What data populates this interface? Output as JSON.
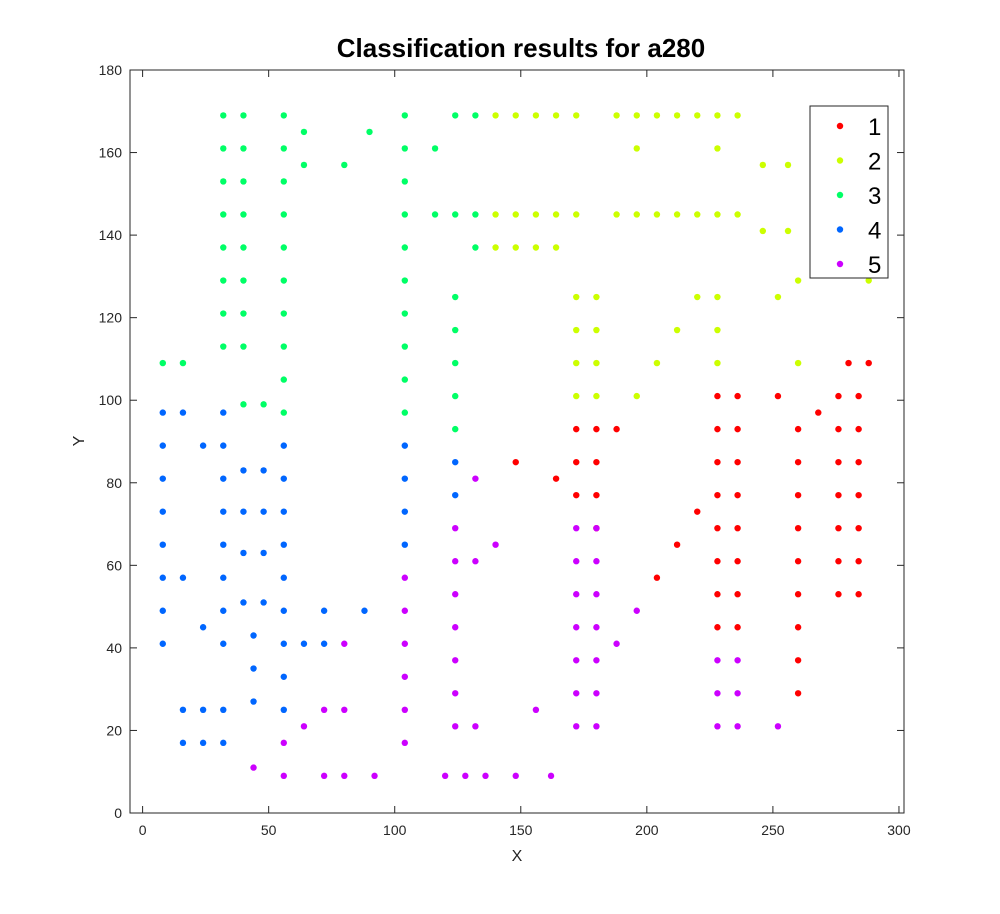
{
  "chart_data": {
    "type": "scatter",
    "title": "Classification results for a280",
    "xlabel": "X",
    "ylabel": "Y",
    "xlim": [
      -5,
      302
    ],
    "ylim": [
      0,
      180
    ],
    "xticks": [
      0,
      50,
      100,
      150,
      200,
      250,
      300
    ],
    "yticks": [
      0,
      20,
      40,
      60,
      80,
      100,
      120,
      140,
      160,
      180
    ],
    "grid": false,
    "legend_position": "top-right",
    "series": [
      {
        "name": "1",
        "color": "#ff0000",
        "points": [
          [
            148,
            85
          ],
          [
            164,
            81
          ],
          [
            172,
            93
          ],
          [
            172,
            85
          ],
          [
            172,
            77
          ],
          [
            180,
            93
          ],
          [
            180,
            85
          ],
          [
            180,
            77
          ],
          [
            180,
            69
          ],
          [
            188,
            93
          ],
          [
            204,
            57
          ],
          [
            212,
            65
          ],
          [
            220,
            73
          ],
          [
            228,
            101
          ],
          [
            228,
            93
          ],
          [
            228,
            85
          ],
          [
            228,
            77
          ],
          [
            228,
            69
          ],
          [
            228,
            61
          ],
          [
            228,
            53
          ],
          [
            228,
            45
          ],
          [
            236,
            101
          ],
          [
            236,
            93
          ],
          [
            236,
            85
          ],
          [
            236,
            77
          ],
          [
            236,
            69
          ],
          [
            236,
            61
          ],
          [
            236,
            53
          ],
          [
            236,
            45
          ],
          [
            252,
            101
          ],
          [
            268,
            97
          ],
          [
            260,
            93
          ],
          [
            260,
            85
          ],
          [
            260,
            77
          ],
          [
            260,
            69
          ],
          [
            260,
            61
          ],
          [
            260,
            53
          ],
          [
            260,
            45
          ],
          [
            260,
            37
          ],
          [
            260,
            29
          ],
          [
            276,
            101
          ],
          [
            276,
            93
          ],
          [
            276,
            85
          ],
          [
            276,
            77
          ],
          [
            276,
            69
          ],
          [
            276,
            61
          ],
          [
            276,
            53
          ],
          [
            284,
            101
          ],
          [
            284,
            93
          ],
          [
            284,
            85
          ],
          [
            284,
            77
          ],
          [
            284,
            69
          ],
          [
            284,
            61
          ],
          [
            284,
            53
          ],
          [
            280,
            109
          ],
          [
            288,
            109
          ]
        ]
      },
      {
        "name": "2",
        "color": "#ccff00",
        "points": [
          [
            140,
            169
          ],
          [
            148,
            169
          ],
          [
            156,
            169
          ],
          [
            164,
            169
          ],
          [
            172,
            169
          ],
          [
            188,
            169
          ],
          [
            196,
            169
          ],
          [
            204,
            169
          ],
          [
            212,
            169
          ],
          [
            220,
            169
          ],
          [
            228,
            169
          ],
          [
            236,
            169
          ],
          [
            196,
            161
          ],
          [
            228,
            161
          ],
          [
            246,
            157
          ],
          [
            256,
            157
          ],
          [
            140,
            145
          ],
          [
            148,
            145
          ],
          [
            156,
            145
          ],
          [
            164,
            145
          ],
          [
            172,
            145
          ],
          [
            188,
            145
          ],
          [
            196,
            145
          ],
          [
            204,
            145
          ],
          [
            212,
            145
          ],
          [
            220,
            145
          ],
          [
            228,
            145
          ],
          [
            236,
            145
          ],
          [
            246,
            141
          ],
          [
            256,
            141
          ],
          [
            140,
            137
          ],
          [
            148,
            137
          ],
          [
            156,
            137
          ],
          [
            164,
            137
          ],
          [
            260,
            129
          ],
          [
            288,
            129
          ],
          [
            172,
            125
          ],
          [
            180,
            125
          ],
          [
            220,
            125
          ],
          [
            228,
            125
          ],
          [
            252,
            125
          ],
          [
            172,
            117
          ],
          [
            180,
            117
          ],
          [
            212,
            117
          ],
          [
            228,
            117
          ],
          [
            172,
            109
          ],
          [
            180,
            109
          ],
          [
            204,
            109
          ],
          [
            228,
            109
          ],
          [
            260,
            109
          ],
          [
            172,
            101
          ],
          [
            180,
            101
          ],
          [
            196,
            101
          ]
        ]
      },
      {
        "name": "3",
        "color": "#00ff66",
        "points": [
          [
            32,
            169
          ],
          [
            40,
            169
          ],
          [
            56,
            169
          ],
          [
            104,
            169
          ],
          [
            124,
            169
          ],
          [
            132,
            169
          ],
          [
            64,
            165
          ],
          [
            90,
            165
          ],
          [
            32,
            161
          ],
          [
            40,
            161
          ],
          [
            56,
            161
          ],
          [
            104,
            161
          ],
          [
            116,
            161
          ],
          [
            64,
            157
          ],
          [
            80,
            157
          ],
          [
            32,
            153
          ],
          [
            40,
            153
          ],
          [
            56,
            153
          ],
          [
            104,
            153
          ],
          [
            32,
            145
          ],
          [
            40,
            145
          ],
          [
            56,
            145
          ],
          [
            104,
            145
          ],
          [
            116,
            145
          ],
          [
            124,
            145
          ],
          [
            132,
            145
          ],
          [
            32,
            137
          ],
          [
            40,
            137
          ],
          [
            56,
            137
          ],
          [
            104,
            137
          ],
          [
            132,
            137
          ],
          [
            32,
            129
          ],
          [
            40,
            129
          ],
          [
            56,
            129
          ],
          [
            104,
            129
          ],
          [
            124,
            125
          ],
          [
            32,
            121
          ],
          [
            40,
            121
          ],
          [
            56,
            121
          ],
          [
            104,
            121
          ],
          [
            124,
            117
          ],
          [
            32,
            113
          ],
          [
            40,
            113
          ],
          [
            56,
            113
          ],
          [
            104,
            113
          ],
          [
            8,
            109
          ],
          [
            16,
            109
          ],
          [
            124,
            109
          ],
          [
            56,
            105
          ],
          [
            104,
            105
          ],
          [
            124,
            101
          ],
          [
            40,
            99
          ],
          [
            48,
            99
          ],
          [
            56,
            97
          ],
          [
            104,
            97
          ],
          [
            124,
            93
          ]
        ]
      },
      {
        "name": "4",
        "color": "#0066ff",
        "points": [
          [
            8,
            97
          ],
          [
            16,
            97
          ],
          [
            32,
            97
          ],
          [
            8,
            89
          ],
          [
            24,
            89
          ],
          [
            32,
            89
          ],
          [
            56,
            89
          ],
          [
            104,
            89
          ],
          [
            124,
            85
          ],
          [
            40,
            83
          ],
          [
            48,
            83
          ],
          [
            8,
            81
          ],
          [
            32,
            81
          ],
          [
            56,
            81
          ],
          [
            104,
            81
          ],
          [
            124,
            77
          ],
          [
            8,
            73
          ],
          [
            32,
            73
          ],
          [
            40,
            73
          ],
          [
            48,
            73
          ],
          [
            56,
            73
          ],
          [
            104,
            73
          ],
          [
            8,
            65
          ],
          [
            32,
            65
          ],
          [
            56,
            65
          ],
          [
            104,
            65
          ],
          [
            40,
            63
          ],
          [
            48,
            63
          ],
          [
            8,
            57
          ],
          [
            16,
            57
          ],
          [
            32,
            57
          ],
          [
            56,
            57
          ],
          [
            40,
            51
          ],
          [
            48,
            51
          ],
          [
            8,
            49
          ],
          [
            32,
            49
          ],
          [
            56,
            49
          ],
          [
            72,
            49
          ],
          [
            88,
            49
          ],
          [
            24,
            45
          ],
          [
            44,
            43
          ],
          [
            8,
            41
          ],
          [
            32,
            41
          ],
          [
            56,
            41
          ],
          [
            64,
            41
          ],
          [
            72,
            41
          ],
          [
            44,
            35
          ],
          [
            56,
            33
          ],
          [
            44,
            27
          ],
          [
            16,
            25
          ],
          [
            24,
            25
          ],
          [
            32,
            25
          ],
          [
            56,
            25
          ],
          [
            16,
            17
          ],
          [
            24,
            17
          ],
          [
            32,
            17
          ]
        ]
      },
      {
        "name": "5",
        "color": "#cc00ff",
        "points": [
          [
            132,
            81
          ],
          [
            172,
            69
          ],
          [
            180,
            69
          ],
          [
            124,
            69
          ],
          [
            140,
            65
          ],
          [
            124,
            61
          ],
          [
            132,
            61
          ],
          [
            172,
            61
          ],
          [
            180,
            61
          ],
          [
            104,
            57
          ],
          [
            124,
            53
          ],
          [
            172,
            53
          ],
          [
            180,
            53
          ],
          [
            104,
            49
          ],
          [
            196,
            49
          ],
          [
            124,
            45
          ],
          [
            172,
            45
          ],
          [
            180,
            45
          ],
          [
            80,
            41
          ],
          [
            104,
            41
          ],
          [
            188,
            41
          ],
          [
            124,
            37
          ],
          [
            172,
            37
          ],
          [
            180,
            37
          ],
          [
            228,
            37
          ],
          [
            236,
            37
          ],
          [
            104,
            33
          ],
          [
            124,
            29
          ],
          [
            172,
            29
          ],
          [
            180,
            29
          ],
          [
            228,
            29
          ],
          [
            236,
            29
          ],
          [
            72,
            25
          ],
          [
            80,
            25
          ],
          [
            104,
            25
          ],
          [
            156,
            25
          ],
          [
            64,
            21
          ],
          [
            124,
            21
          ],
          [
            132,
            21
          ],
          [
            172,
            21
          ],
          [
            180,
            21
          ],
          [
            228,
            21
          ],
          [
            236,
            21
          ],
          [
            252,
            21
          ],
          [
            56,
            17
          ],
          [
            104,
            17
          ],
          [
            44,
            11
          ],
          [
            56,
            9
          ],
          [
            72,
            9
          ],
          [
            80,
            9
          ],
          [
            92,
            9
          ],
          [
            120,
            9
          ],
          [
            128,
            9
          ],
          [
            136,
            9
          ],
          [
            148,
            9
          ],
          [
            162,
            9
          ]
        ]
      }
    ]
  }
}
